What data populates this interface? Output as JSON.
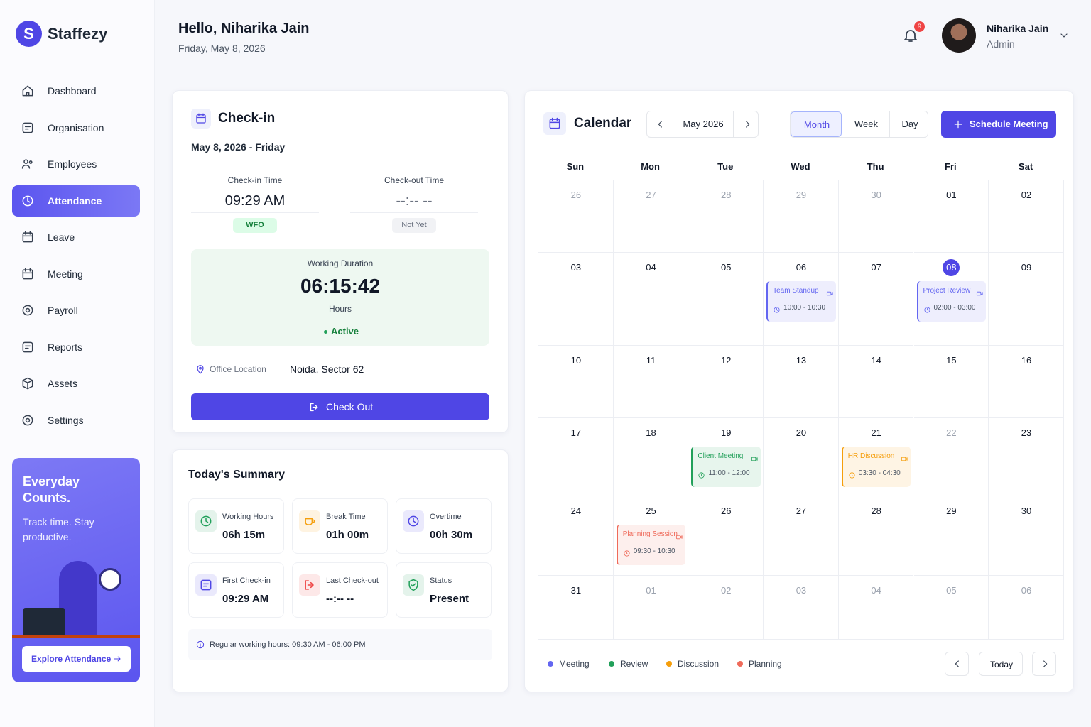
{
  "brand": {
    "initial": "S",
    "name": "Staffezy"
  },
  "nav": [
    {
      "label": "Dashboard"
    },
    {
      "label": "Organisation"
    },
    {
      "label": "Employees"
    },
    {
      "label": "Attendance",
      "active": true
    },
    {
      "label": "Leave"
    },
    {
      "label": "Meeting"
    },
    {
      "label": "Payroll"
    },
    {
      "label": "Reports"
    },
    {
      "label": "Assets"
    },
    {
      "label": "Settings"
    }
  ],
  "promo": {
    "title": "Everyday Counts.",
    "text": "Track time. Stay productive.",
    "button": "Explore Attendance"
  },
  "header": {
    "greeting": "Hello, Niharika Jain",
    "date": "Friday, May 8, 2026",
    "notifications": 9,
    "user": {
      "name": "Niharika Jain",
      "role": "Admin"
    }
  },
  "checkin": {
    "title": "Check-in",
    "date": "May 8, 2026 - Friday",
    "in": {
      "label": "Check-in Time",
      "time": "09:29 AM",
      "badge": "WFO"
    },
    "out": {
      "label": "Check-out Time",
      "time": "--:-- --",
      "badge": "Not Yet"
    },
    "duration": {
      "label": "Working Duration",
      "value": "06:15:42",
      "unit": "Hours",
      "status": "Active"
    },
    "location": {
      "label": "Office Location",
      "value": "Noida, Sector 62"
    },
    "button": "Check Out"
  },
  "summary": {
    "title": "Today's Summary",
    "items": [
      {
        "label": "Working Hours",
        "value": "06h 15m",
        "color": "#22a05a"
      },
      {
        "label": "Break Time",
        "value": "01h 00m",
        "color": "#f59e0b"
      },
      {
        "label": "Overtime",
        "value": "00h 30m",
        "color": "#4f46e5"
      },
      {
        "label": "First Check-in",
        "value": "09:29 AM",
        "color": "#4f46e5"
      },
      {
        "label": "Last Check-out",
        "value": "--:-- --",
        "color": "#ef4444"
      },
      {
        "label": "Status",
        "value": "Present",
        "color": "#22a05a"
      }
    ],
    "note": "Regular working hours: 09:30 AM - 06:00 PM"
  },
  "calendar": {
    "title": "Calendar",
    "month": "May 2026",
    "views": [
      {
        "label": "Month",
        "active": true
      },
      {
        "label": "Week"
      },
      {
        "label": "Day"
      }
    ],
    "button": "Schedule Meeting",
    "weekdays": [
      "Sun",
      "Mon",
      "Tue",
      "Wed",
      "Thu",
      "Fri",
      "Sat"
    ],
    "weeks": [
      [
        {
          "day": "26",
          "other": true
        },
        {
          "day": "27",
          "other": true
        },
        {
          "day": "28",
          "other": true
        },
        {
          "day": "29",
          "other": true
        },
        {
          "day": "30",
          "other": true
        },
        {
          "day": "01"
        },
        {
          "day": "02"
        }
      ],
      [
        {
          "day": "03"
        },
        {
          "day": "04"
        },
        {
          "day": "05"
        },
        {
          "day": "06",
          "event": {
            "title": "Team Standup",
            "time": "10:00 - 10:30",
            "category": "Meeting"
          }
        },
        {
          "day": "07"
        },
        {
          "day": "08",
          "today": true,
          "event": {
            "title": "Project Review",
            "time": "02:00 - 03:00",
            "category": "Meeting"
          }
        },
        {
          "day": "09"
        }
      ],
      [
        {
          "day": "10"
        },
        {
          "day": "11"
        },
        {
          "day": "12"
        },
        {
          "day": "13"
        },
        {
          "day": "14"
        },
        {
          "day": "15"
        },
        {
          "day": "16"
        }
      ],
      [
        {
          "day": "17"
        },
        {
          "day": "18"
        },
        {
          "day": "19",
          "event": {
            "title": "Client Meeting",
            "time": "11:00 - 12:00",
            "category": "Review"
          }
        },
        {
          "day": "20"
        },
        {
          "day": "21",
          "event": {
            "title": "HR Discussion",
            "time": "03:30 - 04:30",
            "category": "Discussion"
          }
        },
        {
          "day": "22",
          "other": true
        },
        {
          "day": "23"
        }
      ],
      [
        {
          "day": "24"
        },
        {
          "day": "25",
          "event": {
            "title": "Planning Session",
            "time": "09:30 - 10:30",
            "category": "Planning"
          }
        },
        {
          "day": "26"
        },
        {
          "day": "27"
        },
        {
          "day": "28"
        },
        {
          "day": "29"
        },
        {
          "day": "30"
        }
      ],
      [
        {
          "day": "31"
        },
        {
          "day": "01",
          "other": true
        },
        {
          "day": "02",
          "other": true
        },
        {
          "day": "03",
          "other": true
        },
        {
          "day": "04",
          "other": true
        },
        {
          "day": "05",
          "other": true
        },
        {
          "day": "06",
          "other": true
        }
      ]
    ],
    "legend": [
      {
        "name": "Meeting",
        "color": "#6366f1"
      },
      {
        "name": "Review",
        "color": "#22a05a"
      },
      {
        "name": "Discussion",
        "color": "#f59e0b"
      },
      {
        "name": "Planning",
        "color": "#ef6a5a"
      }
    ],
    "today_button": "Today"
  }
}
